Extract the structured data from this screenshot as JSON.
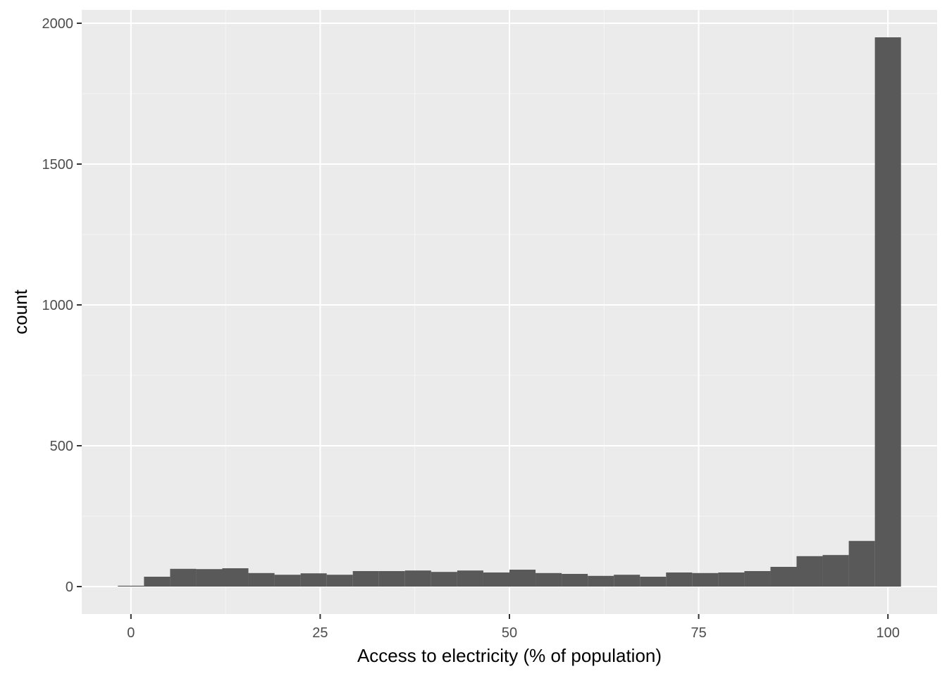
{
  "chart_data": {
    "type": "bar",
    "subtype": "histogram",
    "xlabel": "Access to electricity (% of population)",
    "ylabel": "count",
    "xlim": [
      -6.5,
      106.5
    ],
    "ylim": [
      -97.5,
      2047.5
    ],
    "x_ticks": [
      0,
      25,
      50,
      75,
      100
    ],
    "x_tick_labels": [
      "0",
      "25",
      "50",
      "75",
      "100"
    ],
    "y_ticks": [
      0,
      500,
      1000,
      1500,
      2000
    ],
    "y_tick_labels": [
      "0",
      "500",
      "1000",
      "1500",
      "2000"
    ],
    "x_minor_ticks": [
      12.5,
      37.5,
      62.5,
      87.5
    ],
    "y_minor_ticks": [
      250,
      750,
      1250,
      1750
    ],
    "grid": true,
    "bin_width": 3.4483,
    "bin_centers": [
      0.0,
      3.4483,
      6.8966,
      10.3448,
      13.7931,
      17.2414,
      20.6897,
      24.1379,
      27.5862,
      31.0345,
      34.4828,
      37.931,
      41.3793,
      44.8276,
      48.2759,
      51.7241,
      55.1724,
      58.6207,
      62.069,
      65.5172,
      68.9655,
      72.4138,
      75.8621,
      79.3103,
      82.7586,
      86.2069,
      89.6552,
      93.1034,
      96.5517,
      100.0
    ],
    "values": [
      3,
      35,
      63,
      62,
      65,
      48,
      42,
      47,
      42,
      55,
      55,
      57,
      52,
      57,
      50,
      60,
      48,
      45,
      38,
      42,
      35,
      50,
      48,
      50,
      55,
      70,
      108,
      112,
      162,
      1950
    ],
    "colors": {
      "panel": "#ebebeb",
      "grid_major": "#ffffff",
      "bar": "#595959",
      "tick": "#333333"
    }
  }
}
